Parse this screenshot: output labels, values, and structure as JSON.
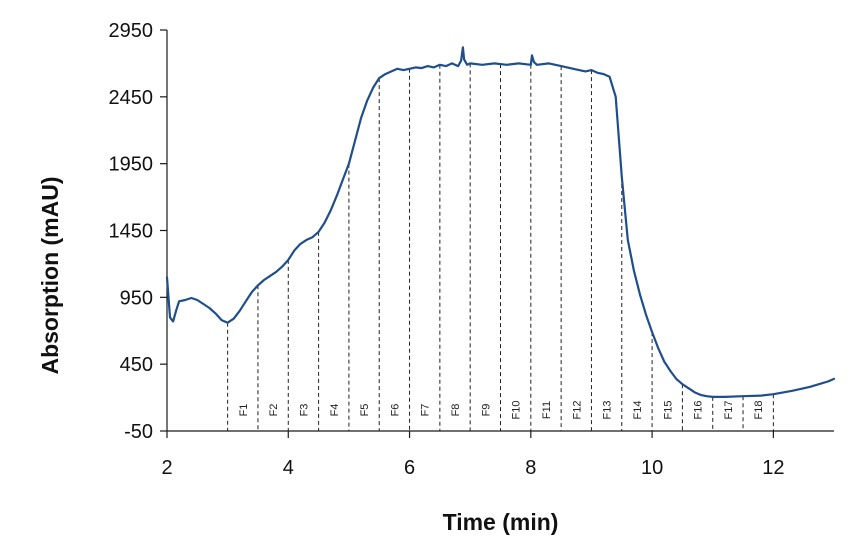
{
  "chart_data": {
    "type": "line",
    "title": "",
    "xlabel": "Time (min)",
    "ylabel": "Absorption (mAU)",
    "xlim": [
      2,
      13
    ],
    "ylim": [
      -50,
      2950
    ],
    "x_ticks": [
      2,
      4,
      6,
      8,
      10,
      12
    ],
    "y_ticks": [
      -50,
      450,
      950,
      1450,
      1950,
      2450,
      2950
    ],
    "grid": false,
    "legend": "none",
    "line_color": "#1f4e8c",
    "series": [
      {
        "x": [
          2.0,
          2.05,
          2.1,
          2.15,
          2.2,
          2.3,
          2.4,
          2.5,
          2.6,
          2.7,
          2.8,
          2.9,
          3.0,
          3.1,
          3.2,
          3.3,
          3.4,
          3.5,
          3.6,
          3.7,
          3.8,
          3.9,
          4.0,
          4.1,
          4.2,
          4.3,
          4.4,
          4.5,
          4.6,
          4.7,
          4.8,
          4.9,
          5.0,
          5.1,
          5.2,
          5.3,
          5.4,
          5.5,
          5.6,
          5.7,
          5.8,
          5.9,
          6.0,
          6.1,
          6.2,
          6.3,
          6.4,
          6.5,
          6.6,
          6.7,
          6.8,
          6.85,
          6.88,
          6.9,
          6.95,
          7.0,
          7.2,
          7.4,
          7.6,
          7.8,
          8.0,
          8.02,
          8.05,
          8.1,
          8.3,
          8.5,
          8.7,
          8.9,
          9.0,
          9.1,
          9.2,
          9.3,
          9.4,
          9.5,
          9.6,
          9.7,
          9.8,
          9.9,
          10.0,
          10.1,
          10.2,
          10.3,
          10.4,
          10.5,
          10.6,
          10.7,
          10.8,
          10.9,
          11.0,
          11.2,
          11.5,
          11.8,
          12.0,
          12.3,
          12.6,
          12.9,
          13.0
        ],
        "y": [
          1100,
          800,
          770,
          850,
          920,
          930,
          945,
          930,
          900,
          870,
          830,
          780,
          760,
          790,
          850,
          920,
          990,
          1040,
          1080,
          1110,
          1140,
          1180,
          1230,
          1300,
          1350,
          1380,
          1400,
          1440,
          1510,
          1600,
          1710,
          1830,
          1950,
          2120,
          2290,
          2420,
          2520,
          2590,
          2620,
          2640,
          2660,
          2650,
          2660,
          2670,
          2665,
          2680,
          2670,
          2690,
          2680,
          2700,
          2680,
          2720,
          2820,
          2730,
          2690,
          2700,
          2690,
          2700,
          2690,
          2700,
          2690,
          2760,
          2710,
          2690,
          2700,
          2680,
          2660,
          2640,
          2650,
          2630,
          2620,
          2600,
          2450,
          1850,
          1380,
          1150,
          970,
          820,
          690,
          570,
          470,
          400,
          340,
          300,
          270,
          240,
          220,
          210,
          205,
          205,
          210,
          215,
          225,
          250,
          280,
          320,
          340
        ]
      }
    ],
    "fraction_markers": {
      "labels": [
        "F1",
        "F2",
        "F3",
        "F4",
        "F5",
        "F6",
        "F7",
        "F8",
        "F9",
        "F10",
        "F11",
        "F12",
        "F13",
        "F14",
        "F15",
        "F16",
        "F17",
        "F18"
      ],
      "boundaries": [
        3.0,
        3.5,
        4.0,
        4.5,
        5.0,
        5.5,
        6.0,
        6.5,
        7.0,
        7.5,
        8.0,
        8.5,
        9.0,
        9.5,
        10.0,
        10.5,
        11.0,
        11.5,
        12.0
      ]
    }
  }
}
